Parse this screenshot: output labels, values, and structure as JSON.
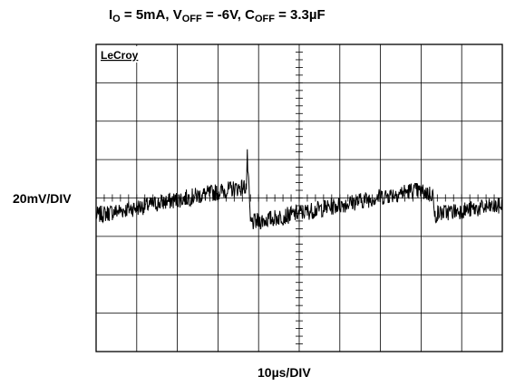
{
  "title": {
    "i_main": "I",
    "i_sub": "O",
    "i_val": " = 5mA, ",
    "v_main": "V",
    "v_sub": "OFF",
    "v_val": " = -6V, ",
    "c_main": "C",
    "c_sub": "OFF",
    "c_val": " = 3.3µF"
  },
  "brand": "LeCroy",
  "chart_data": {
    "type": "line",
    "title": "I_O = 5mA, V_OFF = -6V, C_OFF = 3.3µF",
    "xlabel": "10µs/DIV",
    "ylabel": "20mV/DIV",
    "x_divisions": 10,
    "y_divisions": 8,
    "grid": true,
    "units": {
      "x": "µs",
      "y": "mV"
    },
    "xlim": [
      0,
      100
    ],
    "ylim": [
      -80,
      80
    ],
    "trace_color": "#000000",
    "series": [
      {
        "values_note": "ripple waveform relative to center",
        "x": [
          0,
          37,
          37.2,
          38,
          78,
          83,
          83.2,
          84,
          100
        ],
        "y": [
          -9,
          6,
          22,
          -13,
          4,
          2,
          -10,
          -8,
          -4
        ]
      }
    ]
  }
}
